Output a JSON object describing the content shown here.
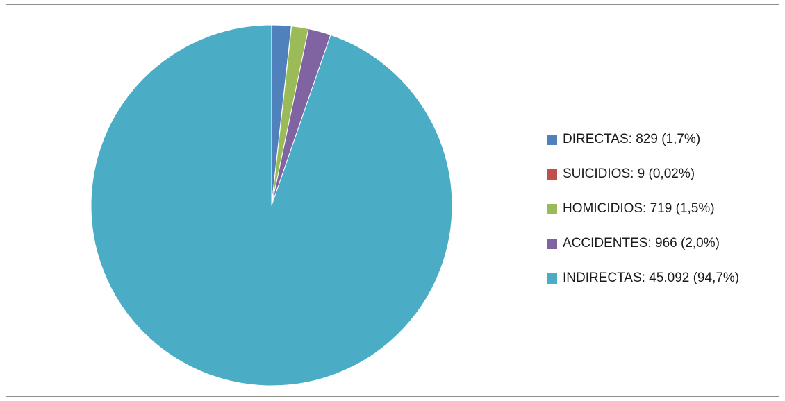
{
  "chart_data": {
    "type": "pie",
    "title": "",
    "legend_position": "right",
    "categories": [
      "DIRECTAS",
      "SUICIDIOS",
      "HOMICIDIOS",
      "ACCIDENTES",
      "INDIRECTAS"
    ],
    "values": [
      829,
      9,
      719,
      966,
      45092
    ],
    "percent_labels": [
      "1,7%",
      "0,02%",
      "1,5%",
      "2,0%",
      "94,7%"
    ],
    "legend": [
      {
        "label": "DIRECTAS: 829 (1,7%)",
        "color": "#4f81bd"
      },
      {
        "label": "SUICIDIOS: 9 (0,02%)",
        "color": "#c0504d"
      },
      {
        "label": "HOMICIDIOS: 719 (1,5%)",
        "color": "#9bbb59"
      },
      {
        "label": "ACCIDENTES: 966 (2,0%)",
        "color": "#8064a2"
      },
      {
        "label": "INDIRECTAS: 45.092 (94,7%)",
        "color": "#4bacc6"
      }
    ],
    "colors": [
      "#4f81bd",
      "#c0504d",
      "#9bbb59",
      "#8064a2",
      "#4bacc6"
    ],
    "start_angle_deg": 0,
    "direction": "clockwise"
  }
}
